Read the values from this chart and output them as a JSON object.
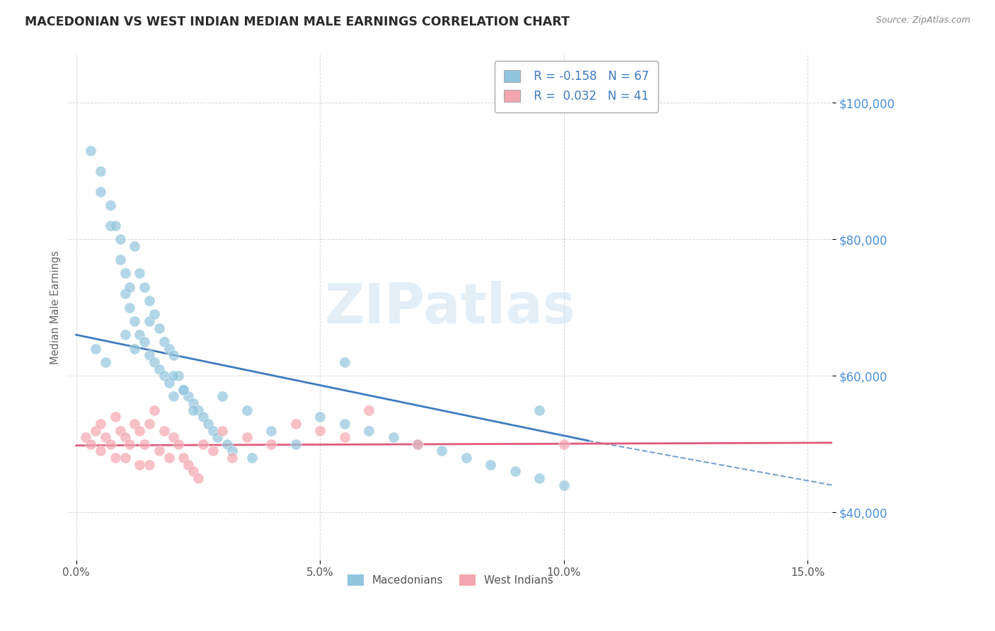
{
  "title": "MACEDONIAN VS WEST INDIAN MEDIAN MALE EARNINGS CORRELATION CHART",
  "source": "Source: ZipAtlas.com",
  "ylabel": "Median Male Earnings",
  "xlabel_ticks": [
    "0.0%",
    "5.0%",
    "10.0%",
    "15.0%"
  ],
  "xlabel_vals": [
    0.0,
    5.0,
    10.0,
    15.0
  ],
  "xlim": [
    -0.15,
    15.5
  ],
  "ylim": [
    33000,
    107000
  ],
  "yticks": [
    40000,
    60000,
    80000,
    100000
  ],
  "ytick_labels": [
    "$40,000",
    "$60,000",
    "$80,000",
    "$100,000"
  ],
  "macedonian_color": "#92c5de",
  "west_indian_color": "#f4a6b0",
  "trend_mac_color": "#3e7bbf",
  "trend_wi_color": "#e05a7a",
  "watermark": "ZIPatlas",
  "macedonians_label": "Macedonians",
  "west_indians_label": "West Indians",
  "legend_r_mac": "R = -0.158",
  "legend_n_mac": "N = 67",
  "legend_r_wi": "R =  0.032",
  "legend_n_wi": "N = 41",
  "mac_scatter_x": [
    0.3,
    0.5,
    0.5,
    0.7,
    0.7,
    0.8,
    0.9,
    0.9,
    1.0,
    1.0,
    1.1,
    1.1,
    1.2,
    1.2,
    1.3,
    1.3,
    1.4,
    1.4,
    1.5,
    1.5,
    1.5,
    1.6,
    1.6,
    1.7,
    1.7,
    1.8,
    1.8,
    1.9,
    1.9,
    2.0,
    2.0,
    2.1,
    2.2,
    2.3,
    2.4,
    2.5,
    2.6,
    2.7,
    2.8,
    2.9,
    3.0,
    3.1,
    3.2,
    3.5,
    3.6,
    4.0,
    4.5,
    5.0,
    5.5,
    6.0,
    6.5,
    7.0,
    7.5,
    8.0,
    8.5,
    9.0,
    9.5,
    10.0,
    0.4,
    0.6,
    1.0,
    1.2,
    2.0,
    2.2,
    2.4,
    5.5,
    9.5
  ],
  "mac_scatter_y": [
    93000,
    90000,
    87000,
    85000,
    82000,
    82000,
    80000,
    77000,
    75000,
    72000,
    73000,
    70000,
    79000,
    68000,
    75000,
    66000,
    73000,
    65000,
    71000,
    68000,
    63000,
    69000,
    62000,
    67000,
    61000,
    65000,
    60000,
    64000,
    59000,
    63000,
    57000,
    60000,
    58000,
    57000,
    56000,
    55000,
    54000,
    53000,
    52000,
    51000,
    57000,
    50000,
    49000,
    55000,
    48000,
    52000,
    50000,
    54000,
    53000,
    52000,
    51000,
    50000,
    49000,
    48000,
    47000,
    46000,
    45000,
    44000,
    64000,
    62000,
    66000,
    64000,
    60000,
    58000,
    55000,
    62000,
    55000
  ],
  "wi_scatter_x": [
    0.2,
    0.3,
    0.4,
    0.5,
    0.5,
    0.6,
    0.7,
    0.8,
    0.8,
    0.9,
    1.0,
    1.0,
    1.1,
    1.2,
    1.3,
    1.3,
    1.4,
    1.5,
    1.5,
    1.6,
    1.7,
    1.8,
    1.9,
    2.0,
    2.1,
    2.2,
    2.3,
    2.4,
    2.5,
    2.6,
    2.8,
    3.0,
    3.2,
    3.5,
    4.0,
    4.5,
    5.0,
    5.5,
    6.0,
    7.0,
    10.0
  ],
  "wi_scatter_y": [
    51000,
    50000,
    52000,
    49000,
    53000,
    51000,
    50000,
    54000,
    48000,
    52000,
    51000,
    48000,
    50000,
    53000,
    52000,
    47000,
    50000,
    53000,
    47000,
    55000,
    49000,
    52000,
    48000,
    51000,
    50000,
    48000,
    47000,
    46000,
    45000,
    50000,
    49000,
    52000,
    48000,
    51000,
    50000,
    53000,
    52000,
    51000,
    55000,
    50000,
    50000
  ],
  "mac_trend_x0": 0.0,
  "mac_trend_x1": 10.5,
  "mac_trend_y0": 66000,
  "mac_trend_y1": 50500,
  "mac_dash_x0": 10.5,
  "mac_dash_x1": 15.5,
  "mac_dash_y0": 50500,
  "mac_dash_y1": 44000,
  "wi_trend_x0": 0.0,
  "wi_trend_x1": 15.5,
  "wi_trend_y0": 49800,
  "wi_trend_y1": 50200,
  "grid_color": "#d0d8e0",
  "title_color": "#2a2a2a",
  "tick_color": "#555555",
  "ytick_color": "#4a90d9",
  "ylabel_color": "#666666"
}
